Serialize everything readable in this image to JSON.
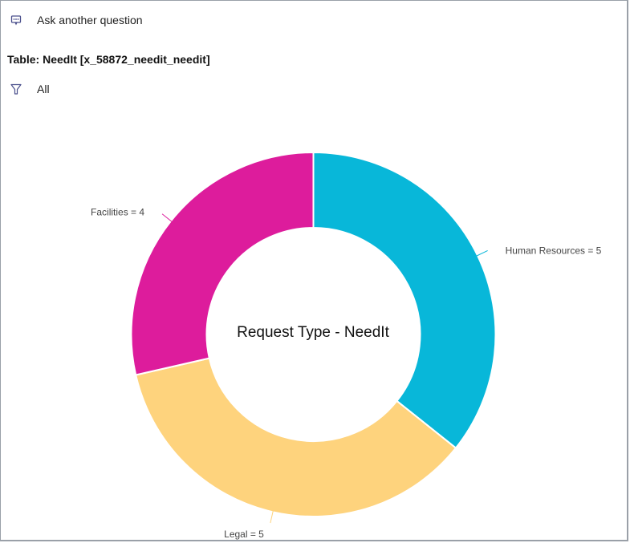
{
  "header": {
    "ask_label": "Ask another question",
    "ask_icon": "chat-bubble-icon",
    "table_title": "Table: NeedIt [x_58872_needit_needit]",
    "filter_label": "All",
    "filter_icon": "filter-funnel-icon"
  },
  "colors": {
    "icon": "#4a4f8c",
    "human_resources": "#08b7d9",
    "legal": "#fed37d",
    "facilities": "#dd1c9c",
    "border": "#9aa0a8"
  },
  "chart_data": {
    "type": "pie",
    "variant": "donut",
    "title": "Request Type - NeedIt",
    "categories": [
      "Human Resources",
      "Legal",
      "Facilities"
    ],
    "values": [
      5,
      5,
      4
    ],
    "labels": [
      "Human Resources = 5",
      "Legal = 5",
      "Facilities = 4"
    ],
    "colors": [
      "#08b7d9",
      "#fed37d",
      "#dd1c9c"
    ],
    "start_angle": "top, clockwise",
    "legend": "none (inline leader labels)"
  }
}
